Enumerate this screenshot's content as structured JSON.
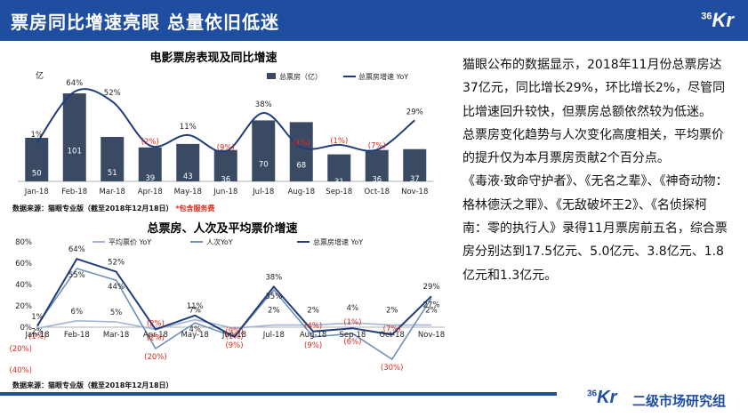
{
  "header": {
    "title": "票房同比增速亮眼 总量依旧低迷",
    "logo": "36Kr"
  },
  "footer": {
    "logo": "36Kr",
    "text": "二级市场研究组"
  },
  "chart_data": [
    {
      "type": "bar",
      "title": "电影票房表现及同比增速",
      "unit_label": "亿",
      "categories": [
        "Jan-18",
        "Feb-18",
        "Mar-18",
        "Apr-18",
        "May-18",
        "Jun-18",
        "Jul-18",
        "Aug-18",
        "Sep-18",
        "Oct-18",
        "Nov-18"
      ],
      "series": [
        {
          "name": "总票房（亿）",
          "kind": "bar",
          "values": [
            50,
            101,
            51,
            39,
            43,
            36,
            70,
            68,
            31,
            36,
            37
          ]
        },
        {
          "name": "总票房增速 YoY",
          "kind": "line",
          "values": [
            1,
            64,
            52,
            -2,
            11,
            -9,
            38,
            -4,
            -1,
            -7,
            29
          ],
          "labels": [
            "1%",
            "64%",
            "52%",
            "(2%)",
            "11%",
            "(9%)",
            "38%",
            "(4%)",
            "(1%)",
            "(7%)",
            "29%"
          ]
        }
      ],
      "source": "数据来源：猫眼专业版（截至2018年12月18日）",
      "note": "*包含服务费",
      "colors": {
        "bar": "#3a4a63",
        "line": "#1f3d7a",
        "negative_label": "#e0281c"
      }
    },
    {
      "type": "line",
      "title": "总票房、人次及平均票价增速",
      "categories": [
        "Jan-18",
        "Feb-18",
        "Mar-18",
        "Apr-18",
        "May-18",
        "Jun-18",
        "Jul-18",
        "Aug-18",
        "Sep-18",
        "Oct-18",
        "Nov-18"
      ],
      "ylim": [
        -40,
        80
      ],
      "yticks": [
        "80%",
        "60%",
        "40%",
        "20%",
        "0%",
        "(20%)",
        "(40%)"
      ],
      "series": [
        {
          "name": "平均票价 YoY",
          "values": [
            -1,
            6,
            5,
            -2,
            7,
            -1,
            2,
            2,
            4,
            2,
            2
          ],
          "labels": [
            "(1%)",
            "6%",
            "5%",
            "(2%)",
            "7%",
            "(1%)",
            "2%",
            "2%",
            "4%",
            "2%",
            "2%"
          ]
        },
        {
          "name": "人次YoY",
          "values": [
            2,
            55,
            44,
            -20,
            4,
            -9,
            35,
            -9,
            -6,
            -30,
            27
          ],
          "labels": [
            "2%",
            "55%",
            "44%",
            "(20%)",
            "4%",
            "(9%)",
            "35%",
            "(9%)",
            "(6%)",
            "(30%)",
            "27%"
          ]
        },
        {
          "name": "总票房增速 YoY",
          "values": [
            1,
            64,
            52,
            -2,
            11,
            -9,
            38,
            -4,
            -1,
            -7,
            29
          ],
          "labels": [
            "1%",
            "64%",
            "52%",
            "(2%)",
            "11%",
            "(9%)",
            "38%",
            "(4%)",
            "(1%)",
            "(7%)",
            "29%"
          ]
        }
      ],
      "source": "数据来源：猫眼专业版（截至2018年12月18日）",
      "colors": {
        "avg_price": "#9fb6d6",
        "attendance": "#6f8fb8",
        "box_office": "#1f3d7a",
        "negative_label": "#e0281c"
      }
    }
  ],
  "text": {
    "paragraphs": [
      "猫眼公布的数据显示，2018年11月份总票房达37亿元，同比增长29%，环比增长2%，尽管同比增速回升较快，但票房总额依然较为低迷。",
      "总票房变化趋势与人次变化高度相关，平均票价的提升仅为本月票房贡献2个百分点。",
      "《毒液·致命守护者》、《无名之辈》、《神奇动物：格林德沃之罪》、《无敌破坏王2》、《名侦探柯南：零的执行人》录得11月票房前五名，综合票房分别达到17.5亿元、5.0亿元、3.8亿元、1.8亿元和1.3亿元。"
    ]
  }
}
